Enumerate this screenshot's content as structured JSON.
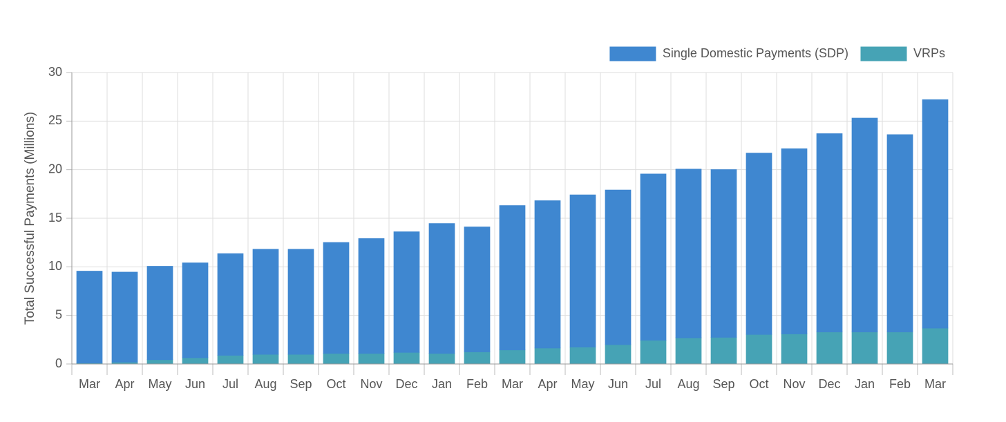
{
  "chart_data": {
    "type": "bar",
    "stacked": true,
    "ylabel": "Total Successful Payments (Millions)",
    "xlabel": "",
    "ylim": [
      0,
      30
    ],
    "yticks": [
      0,
      5,
      10,
      15,
      20,
      25,
      30
    ],
    "grid": true,
    "legend_position": "top-right",
    "categories": [
      "Mar",
      "Apr",
      "May",
      "Jun",
      "Jul",
      "Aug",
      "Sep",
      "Oct",
      "Nov",
      "Dec",
      "Jan",
      "Feb",
      "Mar",
      "Apr",
      "May",
      "Jun",
      "Jul",
      "Aug",
      "Sep",
      "Oct",
      "Nov",
      "Dec",
      "Jan",
      "Feb",
      "Mar"
    ],
    "series": [
      {
        "name": "VRPs",
        "color": "#46a3b5",
        "values": [
          0.1,
          0.2,
          0.45,
          0.65,
          0.9,
          1.0,
          1.0,
          1.1,
          1.1,
          1.2,
          1.1,
          1.25,
          1.45,
          1.65,
          1.75,
          2.0,
          2.45,
          2.7,
          2.75,
          3.05,
          3.1,
          3.3,
          3.3,
          3.3,
          3.7
        ]
      },
      {
        "name": "Single Domestic Payments (SDP)",
        "color": "#3f87d0",
        "values": [
          9.45,
          9.25,
          9.6,
          9.75,
          10.45,
          10.8,
          10.8,
          11.4,
          11.8,
          12.4,
          13.35,
          12.85,
          14.85,
          15.15,
          15.65,
          15.9,
          17.1,
          17.35,
          17.25,
          18.65,
          19.05,
          20.4,
          22.0,
          20.3,
          23.5
        ]
      }
    ]
  }
}
